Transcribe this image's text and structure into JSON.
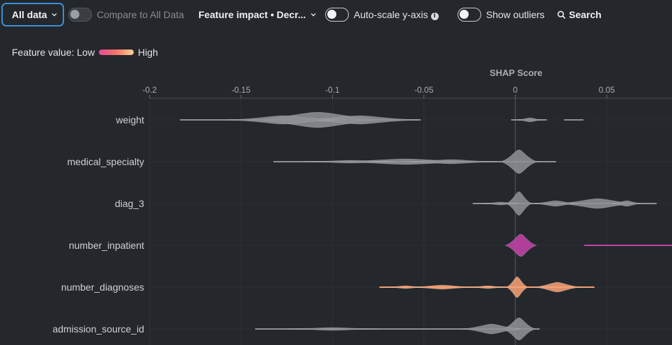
{
  "toolbar": {
    "data_filter": "All data",
    "compare_label": "Compare to All Data",
    "feature_sort": "Feature impact • Decr...",
    "autoscale_label": "Auto-scale y-axis",
    "outliers_label": "Show outliers",
    "search_label": "Search"
  },
  "legend": {
    "prefix": "Feature value: Low",
    "high": "High",
    "low_color": "#e14a9c",
    "mid_color": "#f27466",
    "high_color": "#fbd493"
  },
  "chart_data": {
    "type": "violin",
    "xlabel": "SHAP Score",
    "xlim": [
      -0.2,
      0.08
    ],
    "ticks": [
      -0.2,
      -0.15,
      -0.1,
      -0.05,
      0,
      0.05
    ],
    "tick_labels": [
      "-0.2",
      "-0.15",
      "-0.1",
      "-0.05",
      "0",
      "0.05"
    ],
    "features": [
      {
        "name": "weight",
        "color": "#8d9095",
        "lines": [
          [
            -0.183,
            -0.052
          ],
          [
            -0.002,
            0.017
          ],
          [
            0.027,
            0.037
          ]
        ],
        "blobs": [
          [
            -0.108,
            0.038,
            11
          ],
          [
            -0.085,
            0.032,
            6
          ],
          [
            -0.127,
            0.03,
            6
          ],
          [
            0.008,
            0.007,
            3
          ]
        ]
      },
      {
        "name": "medical_specialty",
        "color": "#8d9095",
        "lines": [
          [
            -0.132,
            0.022
          ]
        ],
        "blobs": [
          [
            0.002,
            0.01,
            17
          ],
          [
            -0.06,
            0.04,
            4
          ],
          [
            -0.09,
            0.025,
            2
          ],
          [
            -0.035,
            0.025,
            3
          ]
        ]
      },
      {
        "name": "diag_3",
        "color": "#8d9095",
        "lines": [
          [
            -0.023,
            0.077
          ]
        ],
        "blobs": [
          [
            0.002,
            0.007,
            17
          ],
          [
            0.045,
            0.022,
            7
          ],
          [
            0.022,
            0.012,
            4
          ],
          [
            0.061,
            0.008,
            4
          ],
          [
            -0.008,
            0.01,
            2
          ]
        ]
      },
      {
        "name": "number_inpatient",
        "color": "#c343a8",
        "lines": [
          [
            0.038,
            0.09
          ]
        ],
        "blobs": [
          [
            0.003,
            0.0085,
            16
          ]
        ]
      },
      {
        "name": "number_diagnoses",
        "color": "#f4a174",
        "lines": [
          [
            -0.074,
            0.043
          ]
        ],
        "blobs": [
          [
            0.001,
            0.006,
            15
          ],
          [
            0.023,
            0.013,
            7
          ],
          [
            -0.04,
            0.018,
            3
          ],
          [
            -0.06,
            0.01,
            2
          ],
          [
            -0.015,
            0.01,
            2
          ]
        ]
      },
      {
        "name": "admission_source_id",
        "color": "#8d9095",
        "lines": [
          [
            -0.142,
            0.013
          ]
        ],
        "blobs": [
          [
            0.002,
            0.009,
            16
          ],
          [
            -0.013,
            0.016,
            7
          ],
          [
            -0.1,
            0.025,
            2
          ]
        ]
      }
    ]
  }
}
